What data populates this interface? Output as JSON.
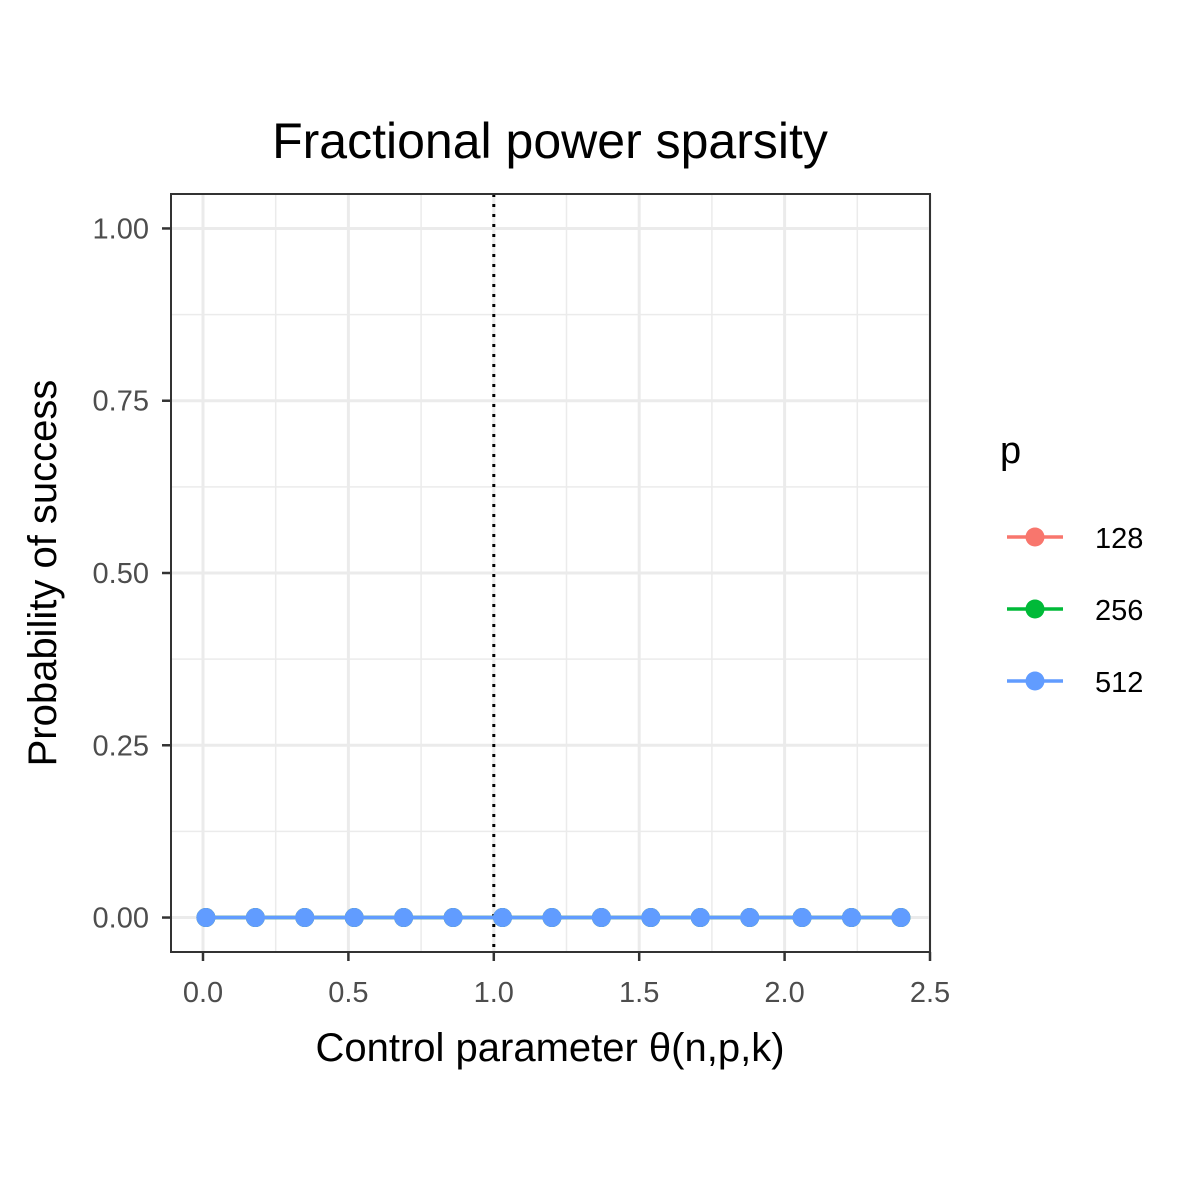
{
  "chart_data": {
    "type": "line",
    "title": "Fractional power sparsity",
    "xlabel": "Control parameter θ(n,p,k)",
    "ylabel": "Probability of success",
    "xlim": [
      -0.11,
      2.5
    ],
    "ylim": [
      -0.05,
      1.05
    ],
    "x_ticks": [
      0.0,
      0.5,
      1.0,
      1.5,
      2.0,
      2.5
    ],
    "x_tick_labels": [
      "0.0",
      "0.5",
      "1.0",
      "1.5",
      "2.0",
      "2.5"
    ],
    "y_ticks": [
      0.0,
      0.25,
      0.5,
      0.75,
      1.0
    ],
    "y_tick_labels": [
      "0.00",
      "0.25",
      "0.50",
      "0.75",
      "1.00"
    ],
    "reference_line": {
      "x": 1.0,
      "style": "dotted",
      "color": "#000000"
    },
    "grid": true,
    "legend": {
      "title": "p",
      "placement": "right"
    },
    "series": [
      {
        "name": "128",
        "color": "#F8766D",
        "x": [
          0.01,
          0.18,
          0.35,
          0.52,
          0.69,
          0.86,
          1.03,
          1.2,
          1.37,
          1.54,
          1.71,
          1.88,
          2.06,
          2.23,
          2.4
        ],
        "y": [
          0,
          0,
          0,
          0,
          0,
          0,
          0,
          0,
          0,
          0,
          0,
          0,
          0,
          0,
          0
        ]
      },
      {
        "name": "256",
        "color": "#00BA38",
        "x": [
          0.01,
          0.18,
          0.35,
          0.52,
          0.69,
          0.86,
          1.03,
          1.2,
          1.37,
          1.54,
          1.71,
          1.88,
          2.06,
          2.23,
          2.4
        ],
        "y": [
          0,
          0,
          0,
          0,
          0,
          0,
          0,
          0,
          0,
          0,
          0,
          0,
          0,
          0,
          0
        ]
      },
      {
        "name": "512",
        "color": "#619CFF",
        "x": [
          0.01,
          0.18,
          0.35,
          0.52,
          0.69,
          0.86,
          1.03,
          1.2,
          1.37,
          1.54,
          1.71,
          1.88,
          2.06,
          2.23,
          2.4
        ],
        "y": [
          0,
          0,
          0,
          0,
          0,
          0,
          0,
          0,
          0,
          0,
          0,
          0,
          0,
          0,
          0
        ]
      }
    ]
  }
}
